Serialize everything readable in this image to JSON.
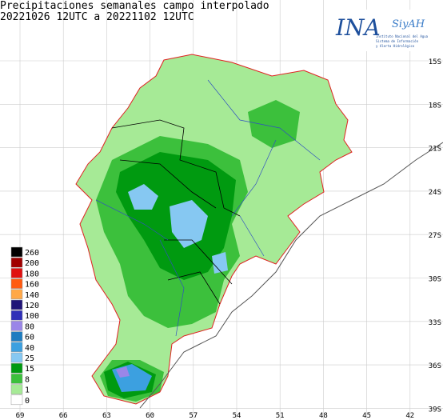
{
  "title": [
    "Precipitaciones semanales campo interpolado",
    "20221026 12UTC a 20221102 12UTC"
  ],
  "logo": {
    "name": "INA",
    "sub": "SiyAH",
    "caption": [
      "Instituto Nacional del Agua",
      "Sistema de Información",
      "y Alerta Hidrológico"
    ]
  },
  "latitudes": [
    "15S",
    "18S",
    "21S",
    "24S",
    "27S",
    "30S",
    "33S",
    "36S",
    "39S"
  ],
  "longitudes": [
    "69",
    "66",
    "63",
    "60",
    "57",
    "54",
    "51",
    "48",
    "45",
    "42"
  ],
  "legend": [
    {
      "label": "260",
      "color": "#000000"
    },
    {
      "label": "200",
      "color": "#a00000"
    },
    {
      "label": "180",
      "color": "#e01010"
    },
    {
      "label": "160",
      "color": "#ff5a10"
    },
    {
      "label": "140",
      "color": "#ffa848"
    },
    {
      "label": "120",
      "color": "#201478"
    },
    {
      "label": "100",
      "color": "#3030b8"
    },
    {
      "label": "80",
      "color": "#9a86e8"
    },
    {
      "label": "60",
      "color": "#1e7cc0"
    },
    {
      "label": "40",
      "color": "#3ca0e0"
    },
    {
      "label": "25",
      "color": "#86c8f2"
    },
    {
      "label": "15",
      "color": "#009a10"
    },
    {
      "label": "8",
      "color": "#3cc03c"
    },
    {
      "label": "1",
      "color": "#a6ea96"
    },
    {
      "label": "0",
      "color": "#ffffff"
    }
  ]
}
